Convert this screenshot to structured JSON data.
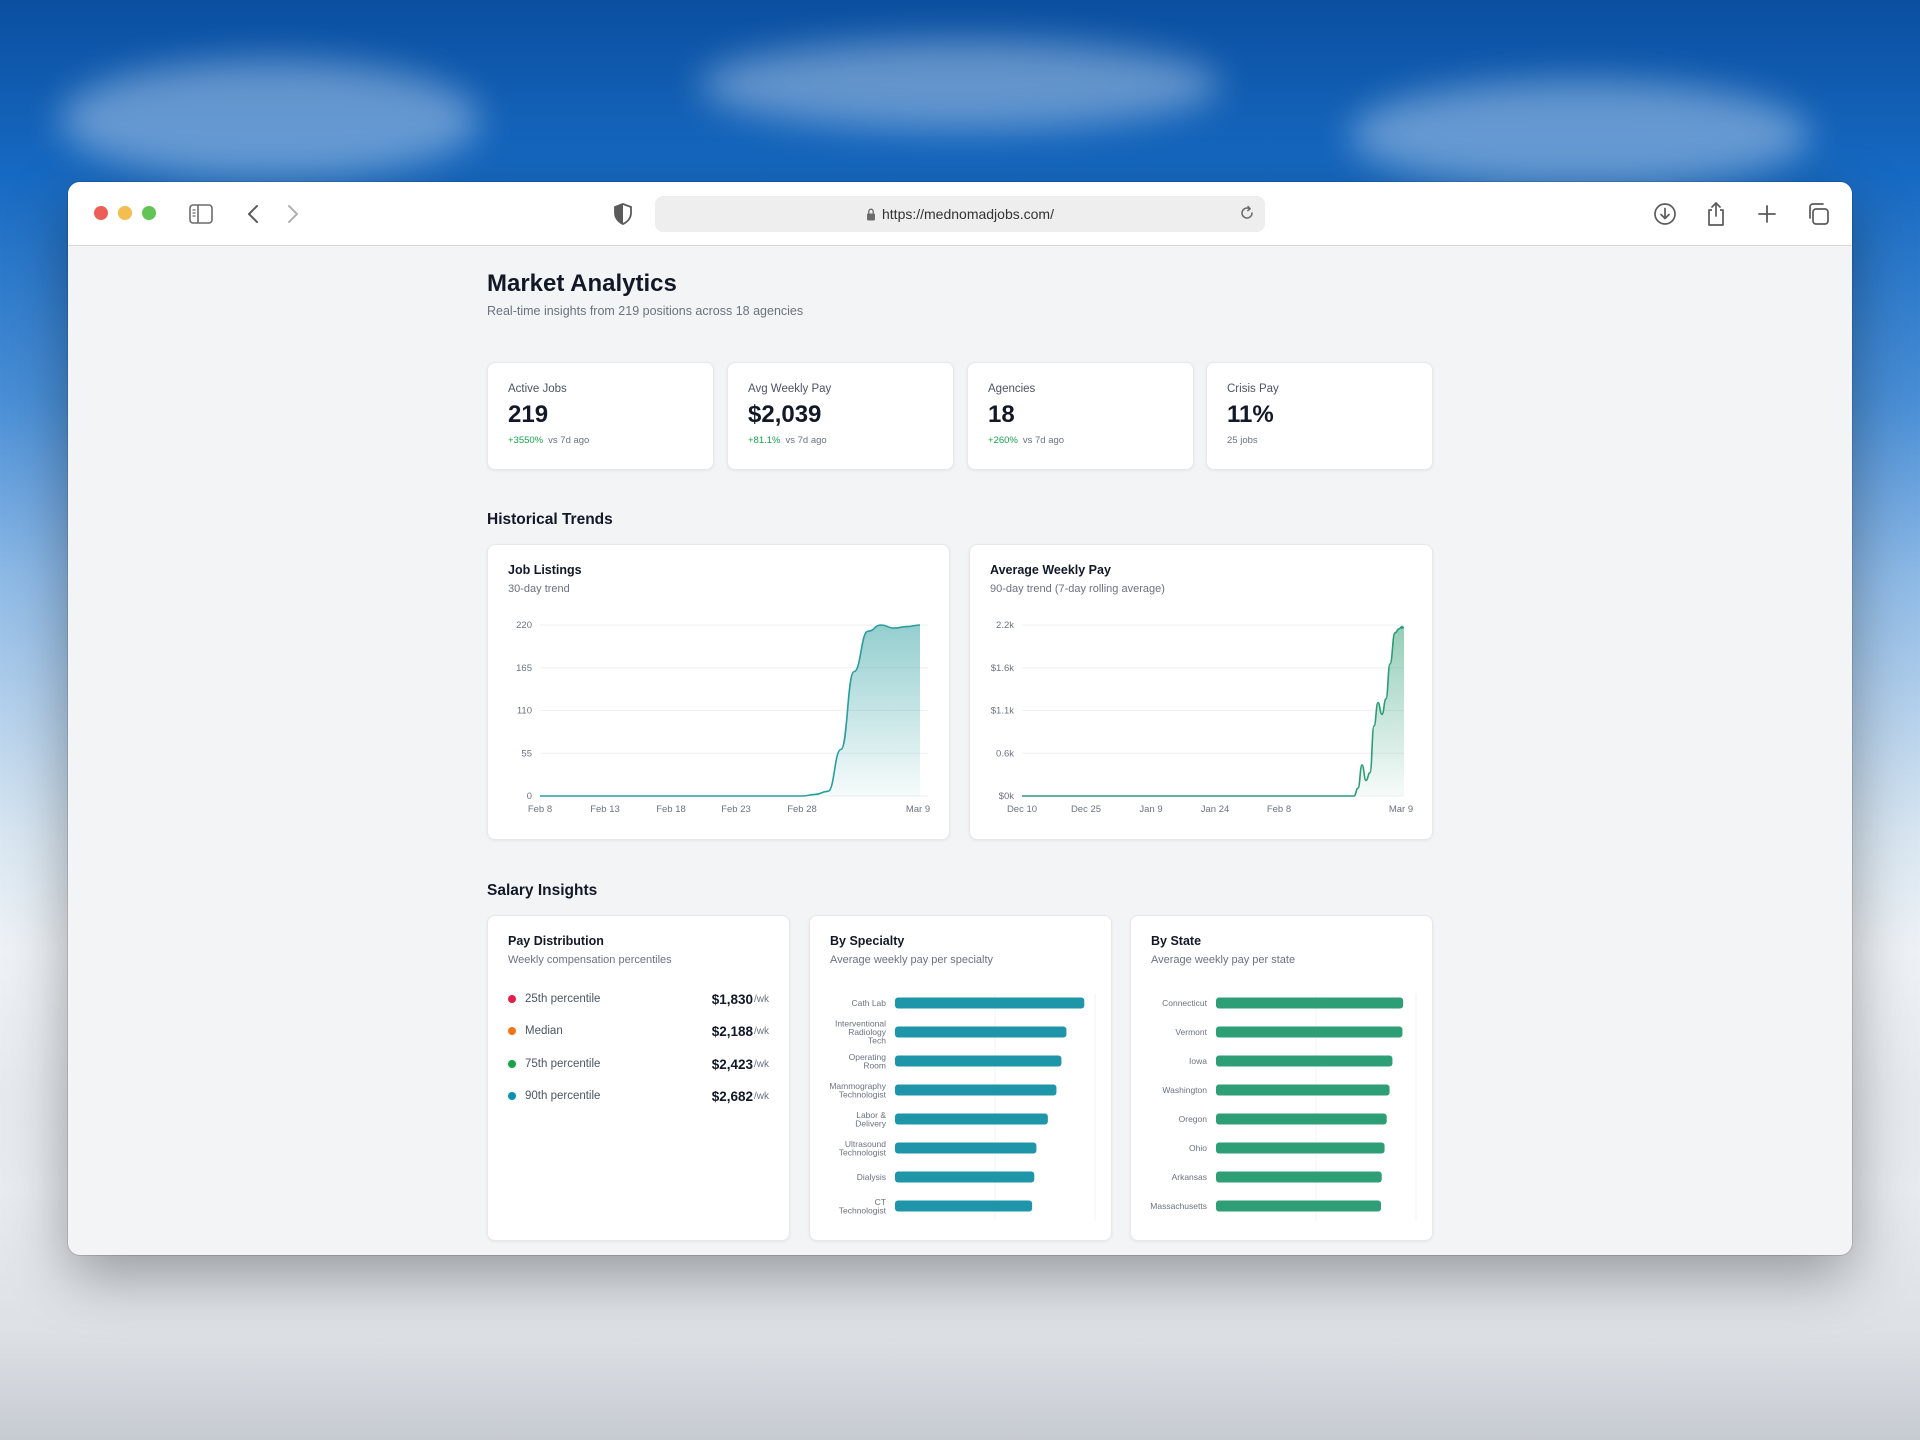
{
  "browser": {
    "url": "https://mednomadjobs.com/"
  },
  "header": {
    "title": "Market Analytics",
    "subtitle": "Real-time insights from 219 positions across 18 agencies"
  },
  "kpis": [
    {
      "label": "Active Jobs",
      "value": "219",
      "change": "+3550%",
      "suffix": "vs 7d ago"
    },
    {
      "label": "Avg Weekly Pay",
      "value": "$2,039",
      "change": "+81.1%",
      "suffix": "vs 7d ago"
    },
    {
      "label": "Agencies",
      "value": "18",
      "change": "+260%",
      "suffix": "vs 7d ago"
    },
    {
      "label": "Crisis Pay",
      "value": "11%",
      "change": "",
      "suffix": "25 jobs"
    }
  ],
  "trends": {
    "section_title": "Historical Trends",
    "listings": {
      "title": "Job Listings",
      "subtitle": "30-day trend"
    },
    "pay": {
      "title": "Average Weekly Pay",
      "subtitle": "90-day trend (7-day rolling average)"
    }
  },
  "salary": {
    "section_title": "Salary Insights",
    "distribution": {
      "title": "Pay Distribution",
      "subtitle": "Weekly compensation percentiles",
      "unit": "/wk",
      "rows": [
        {
          "label": "25th percentile",
          "value": "$1,830",
          "color": "#e11d48"
        },
        {
          "label": "Median",
          "value": "$2,188",
          "color": "#f97316"
        },
        {
          "label": "75th percentile",
          "value": "$2,423",
          "color": "#16a34a"
        },
        {
          "label": "90th percentile",
          "value": "$2,682",
          "color": "#0891b2"
        }
      ]
    },
    "specialty": {
      "title": "By Specialty",
      "subtitle": "Average weekly pay per specialty"
    },
    "state": {
      "title": "By State",
      "subtitle": "Average weekly pay per state"
    }
  },
  "chart_data": [
    {
      "type": "area",
      "title": "Job Listings",
      "x_ticks": [
        "Feb 8",
        "Feb 13",
        "Feb 18",
        "Feb 23",
        "Feb 28",
        "Mar 9"
      ],
      "y_ticks": [
        "0",
        "55",
        "110",
        "165",
        "220"
      ],
      "ylim": [
        0,
        220
      ],
      "x": [
        "Feb 8",
        "Feb 28",
        "Mar 1",
        "Mar 2",
        "Mar 3",
        "Mar 4",
        "Mar 5",
        "Mar 6",
        "Mar 7",
        "Mar 8",
        "Mar 9"
      ],
      "values": [
        0,
        0,
        2,
        6,
        60,
        160,
        212,
        220,
        216,
        218,
        220
      ],
      "color": "#2a9d9f"
    },
    {
      "type": "area",
      "title": "Average Weekly Pay",
      "x_ticks": [
        "Dec 10",
        "Dec 25",
        "Jan 9",
        "Jan 24",
        "Feb 8",
        "Mar 9"
      ],
      "y_ticks": [
        "$0k",
        "0.6k",
        "$1.1k",
        "$1.6k",
        "2.2k"
      ],
      "ylim": [
        0,
        2200
      ],
      "x": [
        "Dec 10",
        "Feb 20",
        "Feb 21",
        "Feb 22",
        "Feb 23",
        "Feb 24",
        "Feb 25",
        "Feb 26",
        "Feb 27",
        "Feb 28",
        "Mar 1",
        "Mar 2",
        "Mar 3",
        "Mar 4",
        "Mar 5",
        "Mar 6",
        "Mar 9"
      ],
      "values": [
        0,
        0,
        100,
        400,
        200,
        300,
        900,
        1200,
        1050,
        1250,
        1700,
        2100,
        2150,
        2180,
        2160,
        2170,
        2170
      ],
      "color": "#2a9d74"
    },
    {
      "type": "bar",
      "title": "By Specialty",
      "orientation": "horizontal",
      "categories": [
        "Cath Lab",
        "Interventional Radiology Tech",
        "Operating Room",
        "Mammography Technologist",
        "Labor & Delivery",
        "Ultrasound Technologist",
        "Dialysis",
        "CT Technologist"
      ],
      "values": [
        2650,
        2400,
        2330,
        2260,
        2140,
        1980,
        1950,
        1920
      ],
      "xlim": [
        0,
        2800
      ],
      "color": "#1e95a8"
    },
    {
      "type": "bar",
      "title": "By State",
      "orientation": "horizontal",
      "categories": [
        "Connecticut",
        "Vermont",
        "Iowa",
        "Washington",
        "Oregon",
        "Ohio",
        "Arkansas",
        "Massachusetts"
      ],
      "values": [
        2620,
        2610,
        2470,
        2430,
        2390,
        2360,
        2320,
        2310
      ],
      "xlim": [
        0,
        2800
      ],
      "color": "#2e9e77"
    }
  ]
}
